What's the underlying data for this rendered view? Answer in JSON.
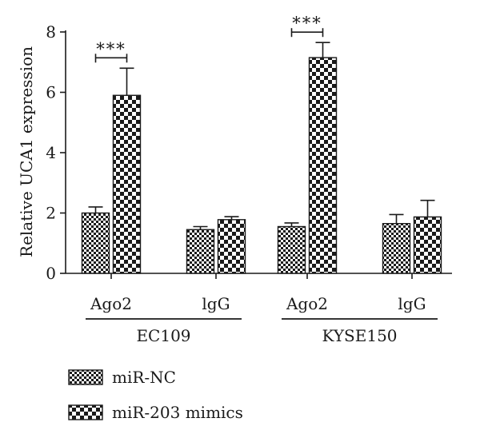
{
  "chart_data": {
    "type": "bar",
    "ylabel": "Relative UCA1 expression",
    "ylim": [
      0,
      8
    ],
    "yticks": [
      0,
      2,
      4,
      6,
      8
    ],
    "grid": false,
    "legend_placement": "bottom-left",
    "colors": {
      "ink": "#1a1a1a",
      "paper": "#ffffff"
    },
    "groups": [
      {
        "label": "EC109",
        "categories": [
          "Ago2",
          "lgG"
        ]
      },
      {
        "label": "KYSE150",
        "categories": [
          "Ago2",
          "lgG"
        ]
      }
    ],
    "categories": [
      "Ago2",
      "lgG",
      "Ago2",
      "lgG"
    ],
    "series": [
      {
        "name": "miR-NC",
        "pattern": "small-checker",
        "values": [
          2.0,
          1.45,
          1.55,
          1.65
        ],
        "errors": [
          0.2,
          0.1,
          0.12,
          0.3
        ]
      },
      {
        "name": "miR-203 mimics",
        "pattern": "large-checker",
        "values": [
          5.9,
          1.78,
          7.15,
          1.87
        ],
        "errors": [
          0.9,
          0.1,
          0.5,
          0.55
        ]
      }
    ],
    "annotations": [
      {
        "text": "***",
        "category_index": 0
      },
      {
        "text": "***",
        "category_index": 2
      }
    ]
  }
}
